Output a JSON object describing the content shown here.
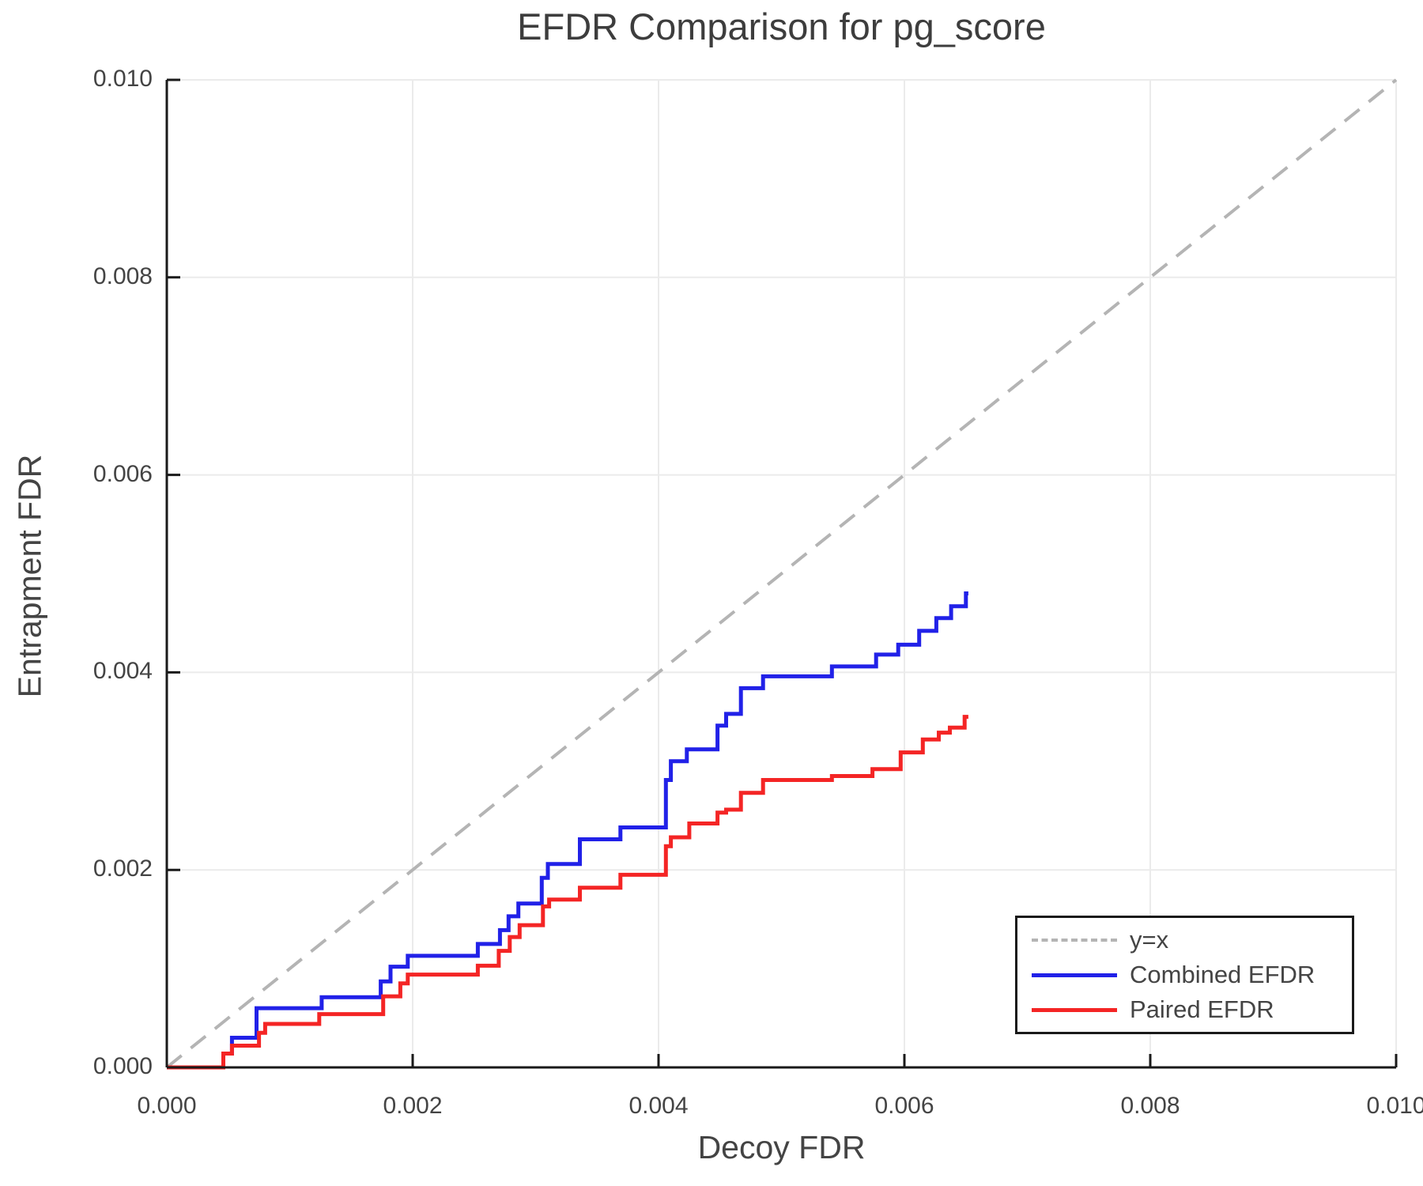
{
  "chart_data": {
    "type": "line",
    "title": "EFDR Comparison for pg_score",
    "xlabel": "Decoy FDR",
    "ylabel": "Entrapment FDR",
    "xlim": [
      0.0,
      0.01
    ],
    "ylim": [
      0.0,
      0.01
    ],
    "grid": true,
    "x_ticks": {
      "values": [
        0.0,
        0.002,
        0.004,
        0.006,
        0.008,
        0.01
      ],
      "labels": [
        "0.000",
        "0.002",
        "0.004",
        "0.006",
        "0.008",
        "0.010"
      ]
    },
    "y_ticks": {
      "values": [
        0.0,
        0.002,
        0.004,
        0.006,
        0.008,
        0.01
      ],
      "labels": [
        "0.000",
        "0.002",
        "0.004",
        "0.006",
        "0.008",
        "0.010"
      ]
    },
    "colors": {
      "identity": "#b4b4b4",
      "combined": "#2121e8",
      "paired": "#f42525",
      "grid": "#ebebeb",
      "spine": "#1a1a1a",
      "text": "#444444"
    },
    "legend": {
      "position": "lower right",
      "entries": [
        "y=x",
        "Combined EFDR",
        "Paired EFDR"
      ]
    },
    "series": [
      {
        "name": "y=x",
        "style": "dashed",
        "color": "#b4b4b4",
        "points": [
          [
            0.0,
            0.0
          ],
          [
            0.01,
            0.01
          ]
        ]
      },
      {
        "name": "Combined EFDR",
        "style": "step",
        "color": "#2121e8",
        "start": [
          0.0,
          0.0
        ],
        "end_x": 0.00652,
        "steps": [
          [
            0.00046,
            0.00014
          ],
          [
            0.00053,
            0.0003
          ],
          [
            0.00073,
            0.0006
          ],
          [
            0.00126,
            0.00071
          ],
          [
            0.00174,
            0.00087
          ],
          [
            0.00182,
            0.00102
          ],
          [
            0.00196,
            0.00113
          ],
          [
            0.00253,
            0.00125
          ],
          [
            0.00271,
            0.00139
          ],
          [
            0.00278,
            0.00153
          ],
          [
            0.00286,
            0.00166
          ],
          [
            0.00305,
            0.00192
          ],
          [
            0.0031,
            0.00206
          ],
          [
            0.00336,
            0.00231
          ],
          [
            0.00369,
            0.00243
          ],
          [
            0.00406,
            0.00291
          ],
          [
            0.0041,
            0.0031
          ],
          [
            0.00423,
            0.00322
          ],
          [
            0.00448,
            0.00346
          ],
          [
            0.00455,
            0.00358
          ],
          [
            0.00467,
            0.00384
          ],
          [
            0.00485,
            0.00396
          ],
          [
            0.00541,
            0.00406
          ],
          [
            0.00577,
            0.00418
          ],
          [
            0.00595,
            0.00428
          ],
          [
            0.00612,
            0.00442
          ],
          [
            0.00626,
            0.00455
          ],
          [
            0.00638,
            0.00467
          ],
          [
            0.0065,
            0.0048
          ]
        ]
      },
      {
        "name": "Paired EFDR",
        "style": "step",
        "color": "#f42525",
        "start": [
          0.0,
          0.0
        ],
        "end_x": 0.00652,
        "steps": [
          [
            0.00046,
            0.00014
          ],
          [
            0.00053,
            0.00022
          ],
          [
            0.00075,
            0.00035
          ],
          [
            0.0008,
            0.00044
          ],
          [
            0.00124,
            0.00054
          ],
          [
            0.00176,
            0.00072
          ],
          [
            0.0019,
            0.00085
          ],
          [
            0.00196,
            0.00094
          ],
          [
            0.00253,
            0.00103
          ],
          [
            0.0027,
            0.00118
          ],
          [
            0.00279,
            0.00132
          ],
          [
            0.00287,
            0.00144
          ],
          [
            0.00306,
            0.00163
          ],
          [
            0.00311,
            0.0017
          ],
          [
            0.00336,
            0.00182
          ],
          [
            0.00369,
            0.00195
          ],
          [
            0.00406,
            0.00224
          ],
          [
            0.0041,
            0.00233
          ],
          [
            0.00425,
            0.00247
          ],
          [
            0.00448,
            0.00258
          ],
          [
            0.00455,
            0.00261
          ],
          [
            0.00467,
            0.00278
          ],
          [
            0.00485,
            0.00291
          ],
          [
            0.00541,
            0.00295
          ],
          [
            0.00574,
            0.00302
          ],
          [
            0.00597,
            0.00319
          ],
          [
            0.00615,
            0.00332
          ],
          [
            0.00628,
            0.00339
          ],
          [
            0.00637,
            0.00344
          ],
          [
            0.00649,
            0.00355
          ]
        ]
      }
    ]
  }
}
